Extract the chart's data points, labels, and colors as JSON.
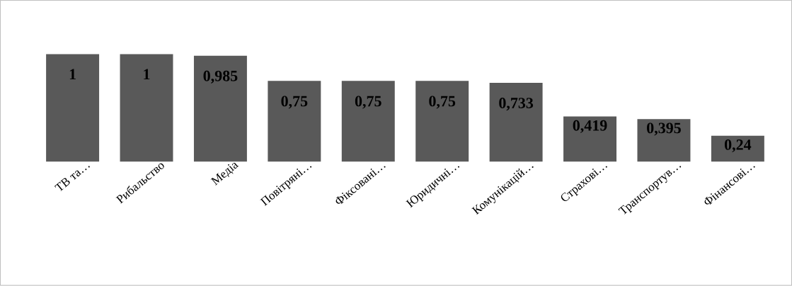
{
  "chart_data": {
    "type": "bar",
    "categories": [
      "ТВ та…",
      "Рибальство",
      "Медіа",
      "Повітряні…",
      "Фіксовані…",
      "Юридичні…",
      "Комунікацій…",
      "Страхові…",
      "Транспортув…",
      "Фінансові…"
    ],
    "values": [
      1,
      1,
      0.985,
      0.75,
      0.75,
      0.75,
      0.733,
      0.419,
      0.395,
      0.24
    ],
    "value_labels": [
      "1",
      "1",
      "0,985",
      "0,75",
      "0,75",
      "0,75",
      "0,733",
      "0,419",
      "0,395",
      "0,24"
    ],
    "color": "#595959"
  }
}
